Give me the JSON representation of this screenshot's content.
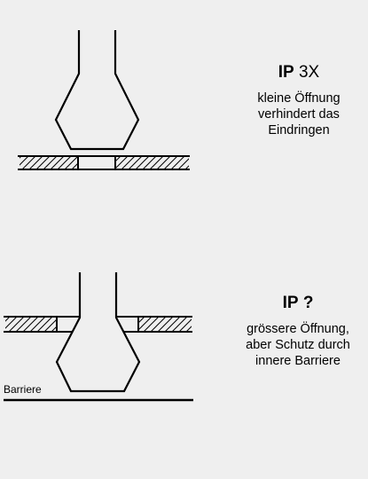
{
  "panels": [
    {
      "code_prefix": "IP",
      "code_suffix": "3X",
      "description": [
        "kleine Öffnung",
        "verhindert das",
        "Eindringen"
      ]
    },
    {
      "code_prefix": "IP",
      "code_suffix": "?",
      "description": [
        "grössere Öffnung,",
        "aber Schutz durch",
        "innere Barriere"
      ]
    }
  ],
  "barrier_label": "Barriere"
}
